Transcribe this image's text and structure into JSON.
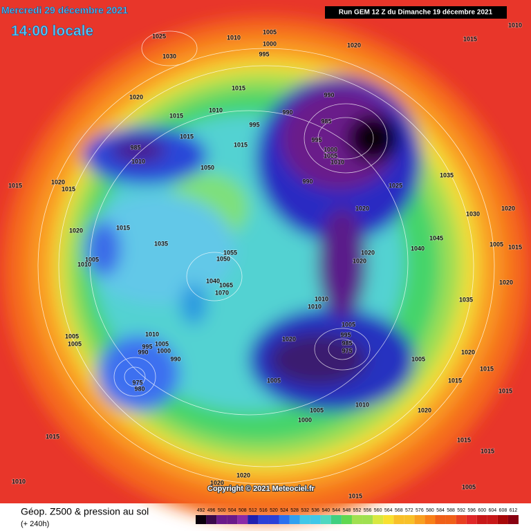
{
  "header": {
    "date": "Mercredi 29 décembre 2021",
    "time": "14:00 locale",
    "run": "Run GEM 12 Z du Dimanche 19 décembre 2021"
  },
  "map": {
    "pressure_labels": [
      "1025",
      "1030",
      "1010",
      "1005",
      "1000",
      "995",
      "1020",
      "1015",
      "1010",
      "1020",
      "1015",
      "1010",
      "1015",
      "995",
      "1015",
      "990",
      "990",
      "985",
      "995",
      "1000",
      "1005",
      "1010",
      "985",
      "1010",
      "1015",
      "1050",
      "990",
      "1025",
      "1035",
      "1015",
      "1020",
      "1015",
      "1020",
      "1030",
      "1020",
      "1020",
      "1015",
      "1035",
      "1055",
      "1050",
      "1005",
      "1010",
      "1040",
      "1045",
      "1005",
      "1015",
      "1020",
      "1020",
      "1040",
      "1065",
      "1070",
      "1010",
      "1010",
      "1035",
      "1020",
      "1020",
      "1005",
      "995",
      "985",
      "975",
      "1010",
      "1005",
      "995",
      "1000",
      "990",
      "990",
      "1005",
      "1005",
      "1005",
      "1020",
      "975",
      "980",
      "1005",
      "1015",
      "1015",
      "1015",
      "1010",
      "1005",
      "1000",
      "1020",
      "1015",
      "1015",
      "1015",
      "1010",
      "1020",
      "1020",
      "1005",
      "1015"
    ]
  },
  "copyright": "Copyright © 2021 Meteociel.fr",
  "footer": {
    "title": "Géop. Z500 & pression au sol",
    "subtitle": "(+ 240h)"
  },
  "legend": {
    "levels": [
      492,
      496,
      500,
      504,
      508,
      512,
      516,
      520,
      524,
      528,
      532,
      536,
      540,
      544,
      548,
      552,
      556,
      560,
      564,
      568,
      572,
      576,
      580,
      584,
      588,
      592,
      596,
      600,
      604,
      608,
      612
    ]
  }
}
